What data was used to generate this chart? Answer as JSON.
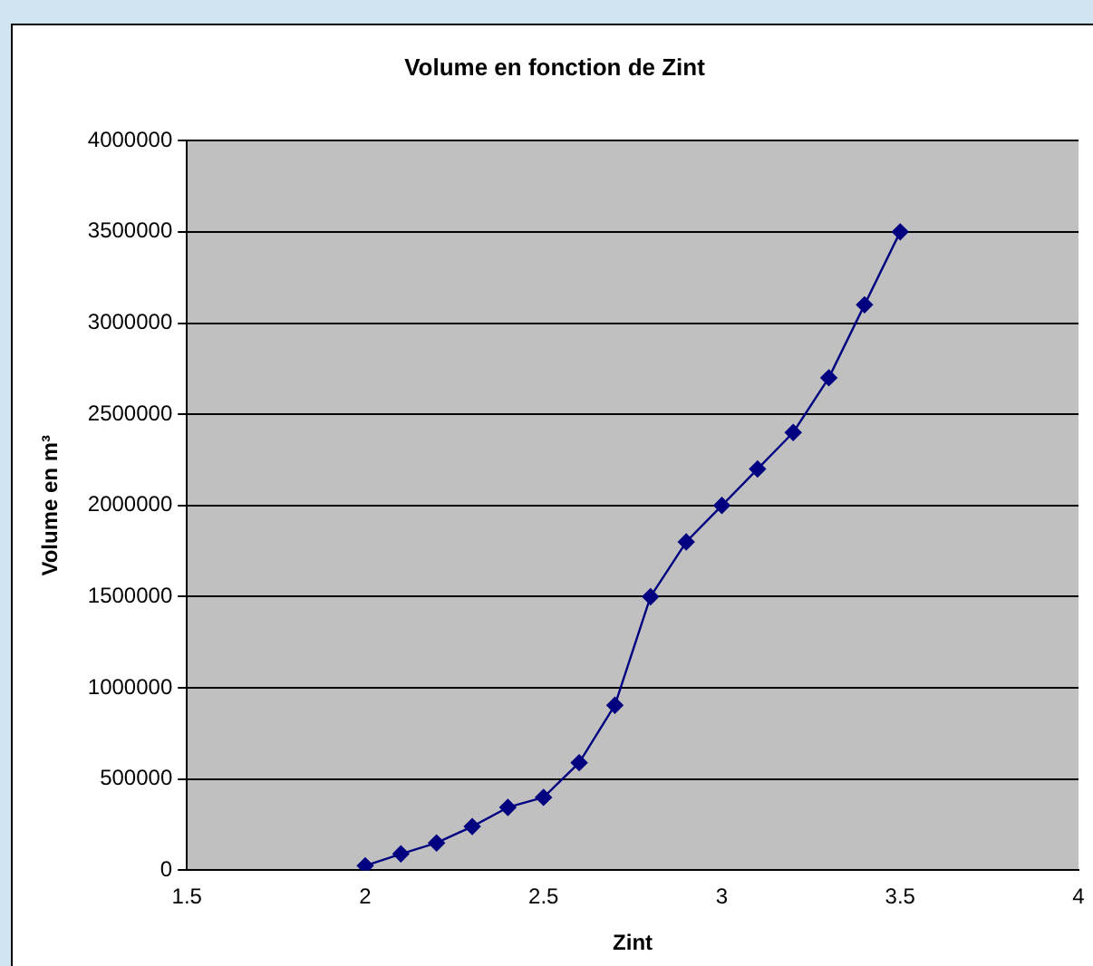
{
  "chart_data": {
    "type": "line",
    "title": "Volume en fonction de Zint",
    "xlabel": "Zint",
    "ylabel": "Volume en m³",
    "x": [
      2.0,
      2.1,
      2.2,
      2.3,
      2.4,
      2.5,
      2.6,
      2.7,
      2.8,
      2.9,
      3.0,
      3.1,
      3.2,
      3.3,
      3.4,
      3.5
    ],
    "series": [
      {
        "color": "#000080",
        "values": [
          25000,
          90000,
          150000,
          240000,
          345000,
          400000,
          590000,
          905000,
          1500000,
          1800000,
          2000000,
          2200000,
          2400000,
          2700000,
          3100000,
          3500000
        ]
      }
    ],
    "xlim": [
      1.5,
      4
    ],
    "xticks": [
      1.5,
      2,
      2.5,
      3,
      3.5,
      4
    ],
    "ylim": [
      0,
      4000000
    ],
    "yticks": [
      0,
      500000,
      1000000,
      1500000,
      2000000,
      2500000,
      3000000,
      3500000,
      4000000
    ],
    "grid": "y",
    "legend": false,
    "marker": "diamond",
    "line_style": "solid"
  }
}
